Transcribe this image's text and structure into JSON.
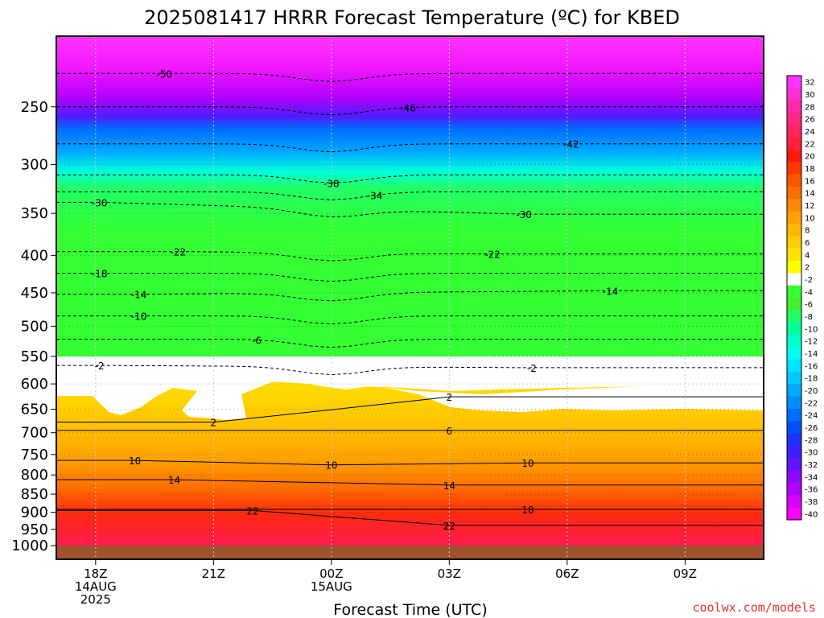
{
  "chart_data": {
    "type": "heatmap",
    "title": "2025081417 HRRR Forecast Temperature (ºC) for KBED",
    "xlabel": "Forecast Time (UTC)",
    "ylabel": "",
    "y_scale": "log",
    "y_inverted": true,
    "ylim": [
      1025,
      200
    ],
    "y_ticks": [
      "250",
      "300",
      "350",
      "400",
      "450",
      "500",
      "550",
      "600",
      "650",
      "700",
      "750",
      "800",
      "850",
      "900",
      "950",
      "1000"
    ],
    "x_ticks": [
      {
        "hours": 1,
        "lines": [
          "18Z",
          "14AUG",
          "2025"
        ]
      },
      {
        "hours": 4,
        "lines": [
          "21Z"
        ]
      },
      {
        "hours": 7,
        "lines": [
          "00Z",
          "15AUG"
        ]
      },
      {
        "hours": 10,
        "lines": [
          "03Z"
        ]
      },
      {
        "hours": 13,
        "lines": [
          "06Z"
        ]
      },
      {
        "hours": 16,
        "lines": [
          "09Z"
        ]
      }
    ],
    "x_range_hours": [
      0,
      18
    ],
    "vertical_grid": true,
    "colorbar": {
      "placement": "right",
      "labels": [
        "32",
        "30",
        "28",
        "26",
        "24",
        "22",
        "20",
        "18",
        "16",
        "14",
        "12",
        "10",
        "8",
        "6",
        "4",
        "2",
        "-2",
        "-4",
        "-6",
        "-8",
        "-10",
        "-12",
        "-14",
        "-16",
        "-18",
        "-20",
        "-22",
        "-24",
        "-26",
        "-28",
        "-30",
        "-32",
        "-34",
        "-36",
        "-38",
        "-40"
      ],
      "colors": [
        "#ff33ff",
        "#ff2fd0",
        "#ff2aa8",
        "#ff2780",
        "#ff245c",
        "#ff1e3c",
        "#ff1a10",
        "#ff3800",
        "#ff5500",
        "#ff6e00",
        "#ff8800",
        "#ffa000",
        "#ffb800",
        "#ffcc00",
        "#ffe400",
        "#ffff00",
        "#ffffff",
        "#33ff33",
        "#44ee33",
        "#22ff66",
        "#00ff99",
        "#00ffcc",
        "#00ffee",
        "#00e6ff",
        "#00c8ff",
        "#00aaff",
        "#008cff",
        "#006eff",
        "#0050ff",
        "#1e32ff",
        "#3c1eff",
        "#6414ff",
        "#8c0aff",
        "#b400ff",
        "#d800ff",
        "#ff00ff"
      ]
    },
    "contours": [
      {
        "value": -50,
        "style": "dashed",
        "labels": [
          {
            "h": 2.75,
            "p": 225,
            "text": "-50"
          }
        ]
      },
      {
        "value": -46,
        "style": "dashed",
        "labels": [
          {
            "h": 8.95,
            "p": 250,
            "text": "-46"
          }
        ]
      },
      {
        "value": -42,
        "style": "dashed",
        "labels": [
          {
            "h": 13.1,
            "p": 281,
            "text": "-42"
          }
        ]
      },
      {
        "value": -38,
        "style": "dashed",
        "labels": [
          {
            "h": 7.0,
            "p": 310,
            "text": "-38"
          }
        ]
      },
      {
        "value": -34,
        "style": "dashed",
        "labels": [
          {
            "h": 8.1,
            "p": 327,
            "text": "-34"
          }
        ]
      },
      {
        "value": -30,
        "style": "dashed",
        "labels": [
          {
            "h": 1.1,
            "p": 338,
            "text": "-30"
          },
          {
            "h": 11.9,
            "p": 351,
            "text": "-30"
          }
        ]
      },
      {
        "value": -22,
        "style": "dashed",
        "labels": [
          {
            "h": 3.1,
            "p": 395,
            "text": "-22"
          },
          {
            "h": 11.1,
            "p": 398,
            "text": "-22"
          }
        ]
      },
      {
        "value": -18,
        "style": "dashed",
        "labels": [
          {
            "h": 1.1,
            "p": 423,
            "text": "-18"
          }
        ]
      },
      {
        "value": -14,
        "style": "dashed",
        "labels": [
          {
            "h": 2.1,
            "p": 452,
            "text": "-14"
          },
          {
            "h": 14.1,
            "p": 447,
            "text": "-14"
          }
        ]
      },
      {
        "value": -10,
        "style": "dashed",
        "labels": [
          {
            "h": 2.1,
            "p": 484,
            "text": "-10"
          }
        ]
      },
      {
        "value": -6,
        "style": "dashed",
        "labels": [
          {
            "h": 5.1,
            "p": 521,
            "text": "-6"
          }
        ]
      },
      {
        "value": -2,
        "style": "dashed",
        "labels": [
          {
            "h": 1.1,
            "p": 566,
            "text": "-2"
          },
          {
            "h": 12.1,
            "p": 570,
            "text": "-2"
          }
        ]
      },
      {
        "value": 2,
        "style": "solid",
        "labels": [
          {
            "h": 4.0,
            "p": 677,
            "text": "2"
          },
          {
            "h": 10.0,
            "p": 625,
            "text": "2"
          }
        ]
      },
      {
        "value": 6,
        "style": "solid",
        "labels": [
          {
            "h": 10.0,
            "p": 695,
            "text": "6"
          }
        ]
      },
      {
        "value": 10,
        "style": "solid",
        "labels": [
          {
            "h": 2.0,
            "p": 764,
            "text": "10"
          },
          {
            "h": 7.0,
            "p": 775,
            "text": "10"
          },
          {
            "h": 12.0,
            "p": 770,
            "text": "10"
          }
        ]
      },
      {
        "value": 14,
        "style": "solid",
        "labels": [
          {
            "h": 3.0,
            "p": 812,
            "text": "14"
          },
          {
            "h": 10.0,
            "p": 826,
            "text": "14"
          }
        ]
      },
      {
        "value": 18,
        "style": "solid",
        "labels": [
          {
            "h": 12.0,
            "p": 892,
            "text": "18"
          }
        ]
      },
      {
        "value": 22,
        "style": "solid",
        "labels": [
          {
            "h": 5.0,
            "p": 895,
            "text": "22"
          },
          {
            "h": 10.0,
            "p": 938,
            "text": "22"
          }
        ]
      }
    ]
  },
  "credit": "coolwx.com/models"
}
